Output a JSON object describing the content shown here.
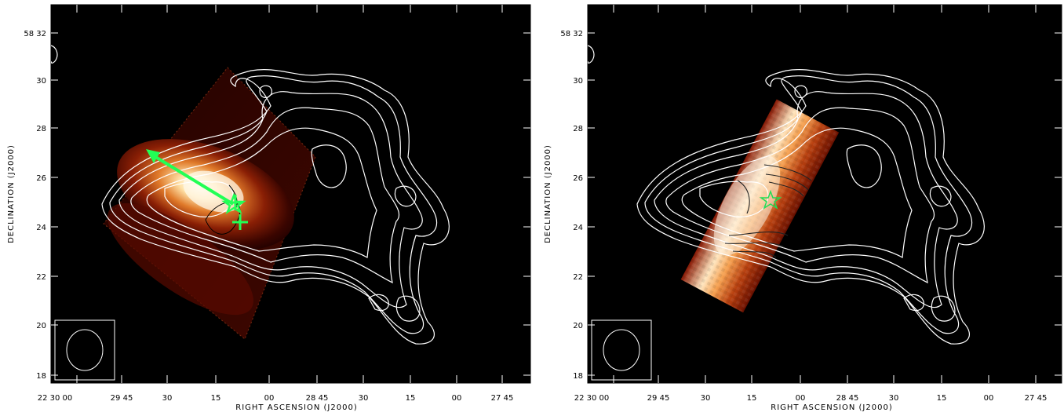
{
  "panels": [
    {
      "id": "left",
      "frame_background": "#000000",
      "contour_color": "#ffffff",
      "marker_color": "#22ff55",
      "dec_ticks": [
        "58 32",
        "30",
        "28",
        "26",
        "24",
        "22",
        "20",
        "18"
      ],
      "ra_ticks": [
        "22 30 00",
        "29 45",
        "30",
        "15",
        "00",
        "28 45",
        "30",
        "15",
        "00",
        "27 45"
      ],
      "xlabel": "RIGHT ASCENSION (J2000)",
      "ylabel": "DECLINATION (J2000)"
    },
    {
      "id": "right",
      "frame_background": "#000000",
      "contour_color": "#ffffff",
      "marker_color": "#22dd55",
      "dec_ticks": [
        "58 32",
        "30",
        "28",
        "26",
        "24",
        "22",
        "20",
        "18"
      ],
      "ra_ticks": [
        "22 30 00",
        "29 45",
        "30",
        "15",
        "00",
        "28 45",
        "30",
        "15",
        "00",
        "27 45"
      ],
      "xlabel": "RIGHT ASCENSION (J2000)",
      "ylabel": "DECLINATION (J2000)"
    }
  ]
}
